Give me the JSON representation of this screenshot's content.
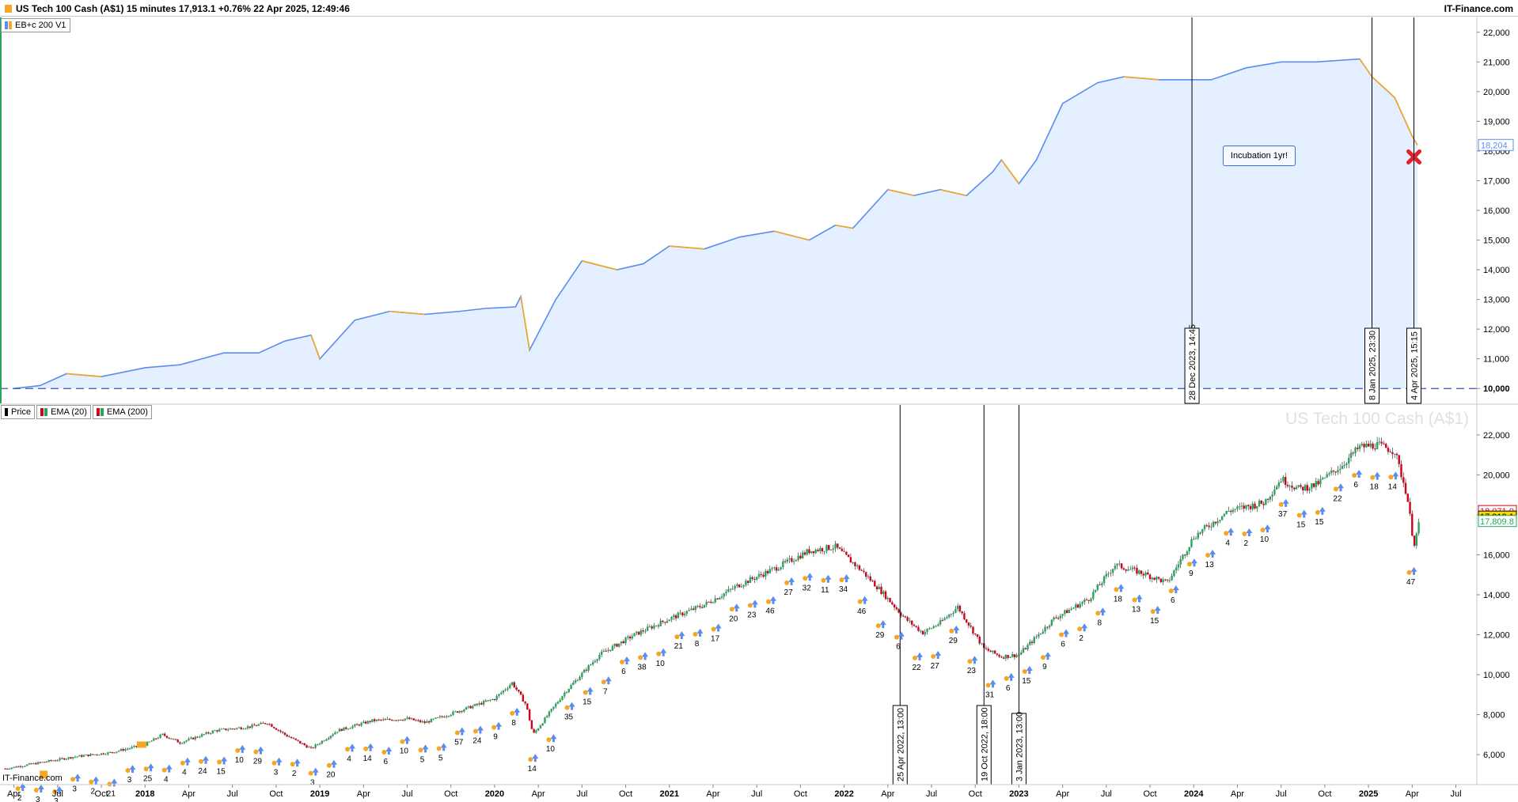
{
  "header": {
    "title": "US Tech 100 Cash (A$1) 15 minutes 17,913.1 +0.76% 22 Apr 2025, 12:49:46",
    "brand": "IT-Finance.com"
  },
  "colors": {
    "accent_blue": "#5b8def",
    "accent_orange": "#f5a623",
    "fill": "#e4efff",
    "up": "#26a65b",
    "down": "#d0021b"
  },
  "top_panel": {
    "legend": [
      {
        "label": "EB+c 200  V1",
        "icon": "strategy-swatch-icon"
      }
    ],
    "note": "Incubation 1yr!",
    "current_value_label": "18,204",
    "marker_icon": "red-x-icon",
    "y_ticks": [
      "22,000",
      "21,000",
      "20,000",
      "19,000",
      "18,000",
      "17,000",
      "16,000",
      "15,000",
      "14,000",
      "13,000",
      "12,000",
      "11,000",
      "10,000"
    ],
    "vlines": [
      "28 Dec 2023, 14:45",
      "8 Jan 2025, 23:30",
      "4 Apr 2025, 15:15"
    ]
  },
  "bottom_panel": {
    "legend": [
      {
        "label": "Price",
        "icon": "price-swatch-icon"
      },
      {
        "label": "EMA (20)",
        "icon": "ema20-swatch-icon"
      },
      {
        "label": "EMA (200)",
        "icon": "ema200-swatch-icon"
      }
    ],
    "watermark": "US Tech 100 Cash (A$1)",
    "y_ticks": [
      "22,000",
      "20,000",
      "18,000",
      "16,000",
      "14,000",
      "12,000",
      "10,000",
      "8,000",
      "6,000"
    ],
    "price_tags": [
      "18,071.0",
      "17,913.1",
      "17,809.8"
    ],
    "vlines": [
      "25 Apr 2022, 13:00",
      "19 Oct 2022, 18:00",
      "3 Jan 2023, 13:00"
    ],
    "trade_labels": [
      "2",
      "3",
      "3",
      "3",
      "2",
      "21",
      "3",
      "25",
      "4",
      "4",
      "24",
      "15",
      "10",
      "29",
      "3",
      "2",
      "3",
      "20",
      "4",
      "14",
      "6",
      "10",
      "5",
      "5",
      "57",
      "24",
      "9",
      "8",
      "14",
      "10",
      "35",
      "15",
      "7",
      "6",
      "38",
      "10",
      "21",
      "8",
      "17",
      "20",
      "23",
      "46",
      "27",
      "32",
      "11",
      "34",
      "46",
      "29",
      "6",
      "22",
      "27",
      "29",
      "23",
      "31",
      "6",
      "15",
      "9",
      "6",
      "2",
      "8",
      "18",
      "13",
      "15",
      "6",
      "9",
      "13",
      "4",
      "2",
      "10",
      "37",
      "15",
      "15",
      "22",
      "6",
      "18",
      "14",
      "47"
    ]
  },
  "x_axis": {
    "labels": [
      "Apr",
      "Jul",
      "Oct",
      "2018",
      "Apr",
      "Jul",
      "Oct",
      "2019",
      "Apr",
      "Jul",
      "Oct",
      "2020",
      "Apr",
      "Jul",
      "Oct",
      "2021",
      "Apr",
      "Jul",
      "Oct",
      "2022",
      "Apr",
      "Jul",
      "Oct",
      "2023",
      "Apr",
      "Jul",
      "Oct",
      "2024",
      "Apr",
      "Jul",
      "Oct",
      "2025",
      "Apr",
      "Jul"
    ],
    "bold": [
      "2018",
      "2019",
      "2020",
      "2021",
      "2022",
      "2023",
      "2024",
      "2025"
    ]
  },
  "chart_data": [
    {
      "type": "line",
      "name": "EB+c 200  V1",
      "x_unit": "year",
      "x": [
        2017.25,
        2017.4,
        2017.55,
        2017.75,
        2018.0,
        2018.2,
        2018.45,
        2018.65,
        2018.8,
        2018.95,
        2019.0,
        2019.2,
        2019.4,
        2019.6,
        2019.8,
        2019.95,
        2020.12,
        2020.15,
        2020.2,
        2020.35,
        2020.5,
        2020.7,
        2020.85,
        2021.0,
        2021.2,
        2021.4,
        2021.6,
        2021.8,
        2021.95,
        2022.05,
        2022.25,
        2022.4,
        2022.55,
        2022.7,
        2022.85,
        2022.9,
        2023.0,
        2023.1,
        2023.25,
        2023.45,
        2023.6,
        2023.8,
        2023.99,
        2024.1,
        2024.3,
        2024.5,
        2024.7,
        2024.95,
        2025.02,
        2025.15,
        2025.25,
        2025.28
      ],
      "values": [
        10000,
        10100,
        10500,
        10400,
        10700,
        10800,
        11200,
        11200,
        11600,
        11800,
        11000,
        12300,
        12600,
        12500,
        12600,
        12700,
        12750,
        13100,
        11300,
        13000,
        14300,
        14000,
        14200,
        14800,
        14700,
        15100,
        15300,
        15000,
        15500,
        15400,
        16700,
        16500,
        16700,
        16500,
        17300,
        17700,
        16900,
        17700,
        19600,
        20300,
        20500,
        20400,
        20400,
        20400,
        20800,
        21000,
        21000,
        21100,
        20500,
        19800,
        18500,
        18204
      ],
      "ylim": [
        9500,
        22500
      ],
      "baseline": 10000,
      "y_ticks": [
        10000,
        11000,
        12000,
        13000,
        14000,
        15000,
        16000,
        17000,
        18000,
        19000,
        20000,
        21000,
        22000
      ]
    },
    {
      "type": "line",
      "name": "Price",
      "x_unit": "year",
      "x": [
        2017.2,
        2017.4,
        2017.6,
        2017.8,
        2018.0,
        2018.1,
        2018.2,
        2018.4,
        2018.6,
        2018.7,
        2018.8,
        2018.95,
        2019.1,
        2019.3,
        2019.5,
        2019.6,
        2019.8,
        2020.0,
        2020.1,
        2020.18,
        2020.22,
        2020.4,
        2020.6,
        2020.8,
        2021.0,
        2021.2,
        2021.4,
        2021.6,
        2021.8,
        2021.95,
        2022.1,
        2022.2,
        2022.35,
        2022.45,
        2022.55,
        2022.65,
        2022.8,
        2022.9,
        2023.0,
        2023.2,
        2023.4,
        2023.55,
        2023.7,
        2023.85,
        2024.0,
        2024.2,
        2024.4,
        2024.5,
        2024.6,
        2024.7,
        2024.85,
        2024.95,
        2025.05,
        2025.15,
        2025.22,
        2025.26,
        2025.3
      ],
      "values": [
        5300,
        5600,
        5900,
        6100,
        6500,
        7000,
        6600,
        7200,
        7400,
        7600,
        7000,
        6300,
        7200,
        7700,
        7800,
        7600,
        8200,
        8800,
        9600,
        8500,
        7000,
        9100,
        11000,
        12000,
        12800,
        13500,
        14500,
        15300,
        16200,
        16400,
        15200,
        14300,
        12800,
        12100,
        12600,
        13400,
        11300,
        10900,
        11000,
        12800,
        13800,
        15500,
        15100,
        14600,
        16900,
        18200,
        18600,
        19800,
        19300,
        19500,
        20500,
        21400,
        21500,
        21200,
        19000,
        16500,
        17913
      ]
    }
  ]
}
